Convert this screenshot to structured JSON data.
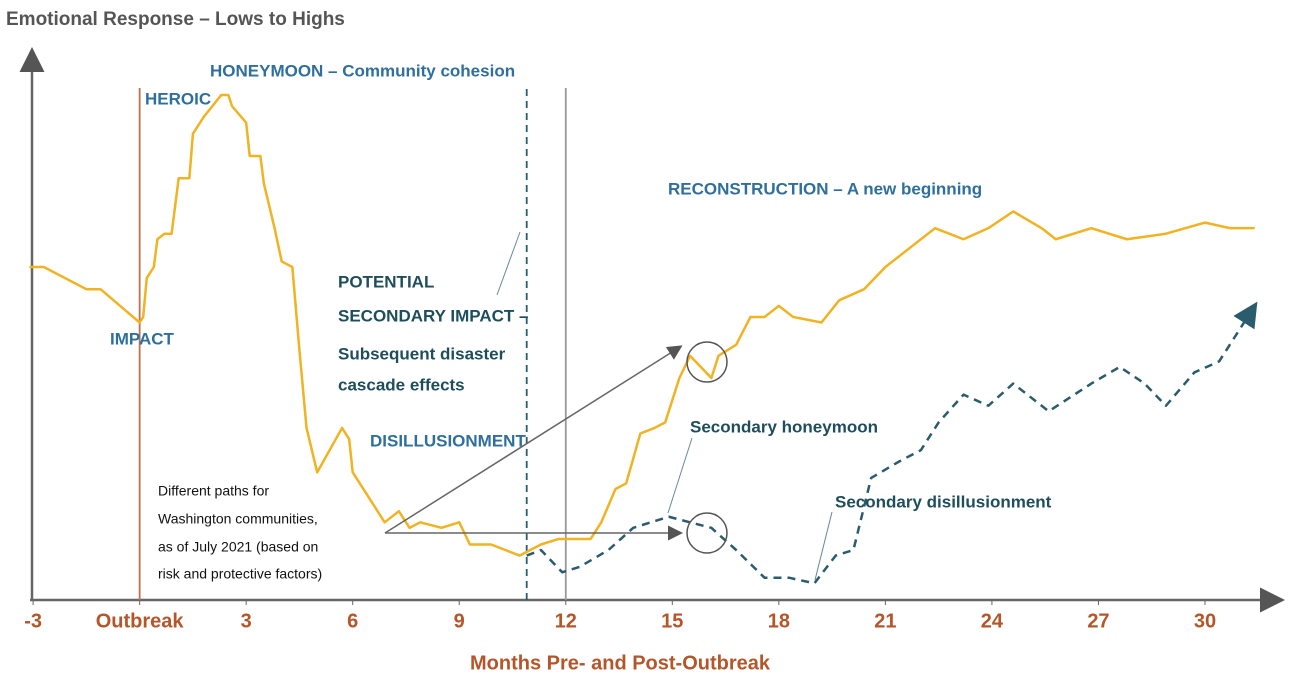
{
  "chart_data": {
    "type": "line",
    "title": "Emotional Response – Lows to Highs",
    "x_label": "Months Pre- and Post-Outbreak",
    "xlim": [
      -3.2,
      32
    ],
    "ylim": [
      0,
      100
    ],
    "xticks": [
      -3,
      {
        "value": 0,
        "label": "Outbreak"
      },
      3,
      6,
      9,
      12,
      15,
      18,
      21,
      24,
      27,
      30
    ],
    "vlines": [
      {
        "value": 0,
        "color": "#c0714a",
        "linestyle": "solid"
      },
      {
        "value": 10.9,
        "color": "#2a5c6e",
        "linestyle": "dashed"
      },
      {
        "value": 12,
        "color": "#999999",
        "linestyle": "solid"
      }
    ],
    "series": [
      {
        "color": "#f0b323",
        "linestyle": "solid",
        "x": [
          -3.1,
          -2.7,
          -1.5,
          -1.1,
          0,
          0.1,
          0.2,
          0.4,
          0.5,
          0.7,
          0.9,
          1.1,
          1.4,
          1.5,
          1.8,
          2.3,
          2.5,
          2.6,
          3.0,
          3.1,
          3.4,
          3.5,
          3.8,
          4.0,
          4.3,
          4.5,
          4.7,
          5.0,
          5.7,
          5.9,
          6.0,
          6.5,
          6.9,
          7.3,
          7.6,
          7.9,
          8.5,
          9.0,
          9.3,
          9.9,
          10.7,
          11.3,
          11.8,
          12.3,
          12.7,
          13.0,
          13.4,
          13.7,
          14.1,
          14.5,
          14.8,
          15.2,
          15.5,
          16.1,
          16.3,
          16.8,
          17.2,
          17.6,
          18.0,
          18.4,
          19.2,
          19.7,
          20.4,
          21.0,
          21.8,
          22.4,
          23.2,
          23.9,
          24.6,
          25.4,
          25.8,
          26.8,
          27.8,
          28.9,
          30.0,
          30.7,
          31.4
        ],
        "values": [
          60,
          60,
          56,
          56,
          50,
          51,
          58,
          60,
          65,
          66,
          66,
          76,
          76,
          84,
          87,
          91,
          91,
          89,
          86,
          80,
          80,
          75,
          67,
          61,
          60,
          45,
          31,
          23,
          31,
          29,
          23,
          18,
          14,
          16,
          13,
          14,
          13,
          14,
          10,
          10,
          8,
          10,
          11,
          11,
          11,
          14,
          20,
          21,
          30,
          31,
          32,
          40,
          44,
          40,
          44,
          46,
          51,
          51,
          53,
          51,
          50,
          54,
          56,
          60,
          64,
          67,
          65,
          67,
          70,
          67,
          65,
          67,
          65,
          66,
          68,
          67,
          67
        ]
      },
      {
        "color": "#2a5c6e",
        "linestyle": "dashed",
        "x": [
          10.9,
          11.3,
          11.9,
          12.4,
          13.2,
          13.9,
          14.9,
          15.5,
          16.1,
          16.8,
          17.6,
          18.3,
          19.0,
          19.6,
          20.1,
          20.6,
          21.4,
          22.0,
          22.5,
          23.2,
          23.9,
          24.6,
          25.6,
          26.8,
          27.6,
          28.3,
          28.9,
          29.7,
          30.4,
          31.4
        ],
        "values": [
          8,
          9,
          5,
          6,
          9,
          13,
          15,
          14,
          13,
          9,
          4,
          4,
          3,
          8,
          9,
          22,
          25,
          27,
          32,
          37,
          35,
          39,
          34,
          39,
          42,
          39,
          35,
          41,
          43,
          53
        ]
      }
    ],
    "annotations": [
      [
        "HEROIC"
      ],
      [
        "HONEYMOON – Community cohesion"
      ],
      [
        "IMPACT"
      ],
      [
        "POTENTIAL",
        "SECONDARY IMPACT –",
        "Subsequent disaster",
        "cascade effects"
      ],
      [
        "DISILLUSIONMENT"
      ],
      [
        "RECONSTRUCTION – A new beginning"
      ],
      [
        "Secondary honeymoon"
      ],
      [
        "Secondary disillusionment"
      ],
      [
        "Different paths for",
        "Washington communities,",
        "as of July 2021 (based on",
        "risk and protective factors)"
      ]
    ]
  }
}
